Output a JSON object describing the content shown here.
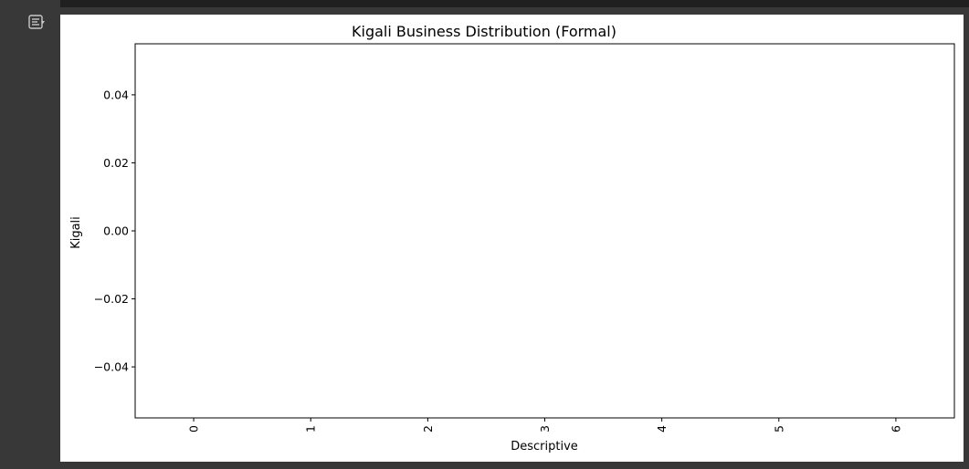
{
  "notebook": {
    "output_toggle_icon": "output-collapse-icon"
  },
  "chart_data": {
    "type": "bar",
    "title": "Kigali Business Distribution (Formal)",
    "xlabel": "Descriptive",
    "ylabel": "Kigali",
    "categories": [
      "0",
      "1",
      "2",
      "3",
      "4",
      "5",
      "6"
    ],
    "values": [
      0,
      0,
      0,
      0,
      0,
      0,
      0
    ],
    "ylim": [
      -0.055,
      0.055
    ],
    "yticks": [
      0.04,
      0.02,
      0.0,
      -0.02,
      -0.04
    ],
    "ytick_labels": [
      "0.04",
      "0.02",
      "0.00",
      "−0.02",
      "−0.04"
    ],
    "grid": false,
    "legend": "none"
  }
}
